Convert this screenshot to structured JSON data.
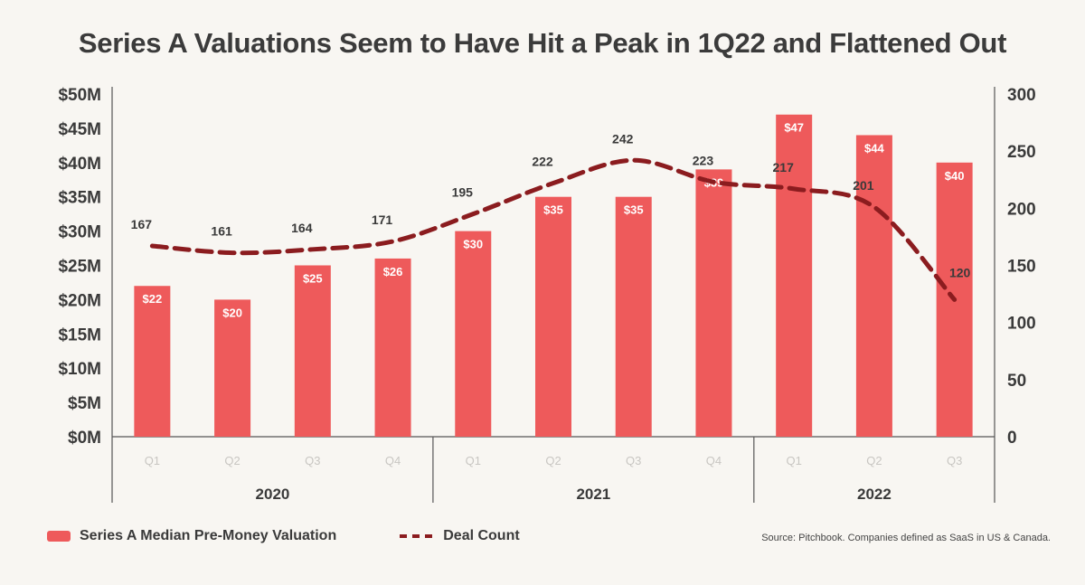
{
  "chart_data": {
    "type": "bar",
    "title": "Series A Valuations Seem to Have Hit a Peak in 1Q22 and Flattened Out",
    "categories": [
      "Q1",
      "Q2",
      "Q3",
      "Q4",
      "Q1",
      "Q2",
      "Q3",
      "Q4",
      "Q1",
      "Q2",
      "Q3"
    ],
    "groups": [
      {
        "label": "2020",
        "count": 4
      },
      {
        "label": "2021",
        "count": 4
      },
      {
        "label": "2022",
        "count": 3
      }
    ],
    "series": [
      {
        "name": "Series A Median Pre-Money Valuation",
        "type": "bar",
        "axis": "left",
        "values": [
          22,
          20,
          25,
          26,
          30,
          35,
          35,
          39,
          47,
          44,
          40
        ],
        "labels": [
          "$22",
          "$20",
          "$25",
          "$26",
          "$30",
          "$35",
          "$35",
          "$39",
          "$47",
          "$44",
          "$40"
        ],
        "color": "#ee5a5b"
      },
      {
        "name": "Deal Count",
        "type": "line",
        "style": "dashed",
        "axis": "right",
        "values": [
          167,
          161,
          164,
          171,
          195,
          222,
          242,
          223,
          217,
          201,
          120
        ],
        "labels": [
          "167",
          "161",
          "164",
          "171",
          "195",
          "222",
          "242",
          "223",
          "217",
          "201",
          "120"
        ],
        "color": "#8b1c1f"
      }
    ],
    "y_left": {
      "range": [
        0,
        50
      ],
      "ticks": [
        0,
        5,
        10,
        15,
        20,
        25,
        30,
        35,
        40,
        45,
        50
      ],
      "tick_labels": [
        "$0M",
        "$5M",
        "$10M",
        "$15M",
        "$20M",
        "$25M",
        "$30M",
        "$35M",
        "$40M",
        "$45M",
        "$50M"
      ]
    },
    "y_right": {
      "range": [
        0,
        300
      ],
      "ticks": [
        0,
        50,
        100,
        150,
        200,
        250,
        300
      ],
      "tick_labels": [
        "0",
        "50",
        "100",
        "150",
        "200",
        "250",
        "300"
      ]
    },
    "grid": false,
    "legend": "bottom-left"
  },
  "source": "Source: Pitchbook. Companies defined as SaaS in US & Canada."
}
